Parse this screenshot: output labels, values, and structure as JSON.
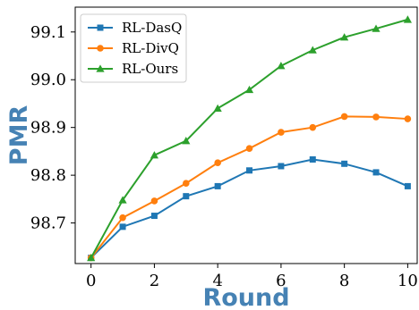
{
  "chart_data": {
    "type": "line",
    "title": "",
    "xlabel": "Round",
    "ylabel": "PMR",
    "x": [
      0,
      1,
      2,
      3,
      4,
      5,
      6,
      7,
      8,
      9,
      10
    ],
    "xlim": [
      -0.5,
      10.3
    ],
    "ylim": [
      98.615,
      99.152
    ],
    "xticks": [
      0,
      2,
      4,
      6,
      8,
      10
    ],
    "yticks": [
      98.7,
      98.8,
      98.9,
      99.0,
      99.1
    ],
    "xtick_labels": [
      "0",
      "2",
      "4",
      "6",
      "8",
      "10"
    ],
    "ytick_labels": [
      "98.7",
      "98.8",
      "98.9",
      "99.0",
      "99.1"
    ],
    "grid": false,
    "legend_position": "top-left",
    "label_color": "#4682b4",
    "series": [
      {
        "name": "RL-DasQ",
        "color": "#1f77b4",
        "marker": "square",
        "values": [
          98.627,
          98.692,
          98.715,
          98.756,
          98.777,
          98.81,
          98.819,
          98.833,
          98.824,
          98.806,
          98.777
        ]
      },
      {
        "name": "RL-DivQ",
        "color": "#ff7f0e",
        "marker": "circle",
        "values": [
          98.627,
          98.711,
          98.746,
          98.783,
          98.826,
          98.856,
          98.89,
          98.9,
          98.923,
          98.922,
          98.918
        ]
      },
      {
        "name": "RL-Ours",
        "color": "#2ca02c",
        "marker": "triangle",
        "values": [
          98.627,
          98.748,
          98.842,
          98.872,
          98.94,
          98.979,
          99.029,
          99.062,
          99.089,
          99.107,
          99.126
        ]
      }
    ]
  }
}
